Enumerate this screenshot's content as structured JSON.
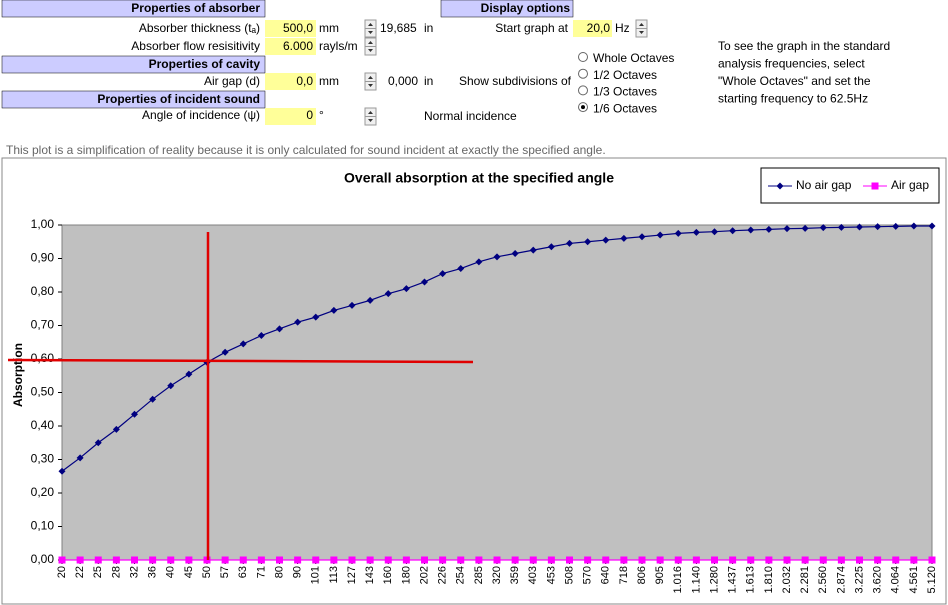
{
  "sections": {
    "absorber": "Properties of absorber",
    "display": "Display options",
    "cavity": "Properties of cavity",
    "incident": "Properties of incident sound"
  },
  "fields": [
    {
      "label": "Absorber thickness (tₐ)",
      "value": "500,0",
      "unit": "mm",
      "converted": "19,685",
      "converted_unit": "in"
    },
    {
      "label": "Absorber flow resisitivity",
      "value": "6.000",
      "unit": "rayls/m"
    },
    {
      "label": "Air gap (d)",
      "value": "0,0",
      "unit": "mm",
      "converted": "0,000",
      "converted_unit": "in"
    },
    {
      "label": "Angle of incidence (ψ)",
      "value": "0",
      "unit": "°",
      "note": "Normal incidence"
    }
  ],
  "display": {
    "start_label": "Start graph at",
    "start_value": "20,0",
    "start_unit": "Hz",
    "subdivisions_label": "Show subdivisions of",
    "options": [
      "Whole Octaves",
      "1/2 Octaves",
      "1/3 Octaves",
      "1/6 Octaves"
    ],
    "selected": 3
  },
  "info": [
    "To see the graph in the standard",
    "analysis frequencies, select",
    "\"Whole Octaves\" and set the",
    "starting frequency to 62.5Hz"
  ],
  "note": "This plot is a simplification of reality because it is only calculated for sound incident at exactly the specified angle.",
  "chart_data": {
    "type": "line",
    "title": "Overall absorption at the specified angle",
    "y_label": "Absorption",
    "categories": [
      "20",
      "22",
      "25",
      "28",
      "32",
      "36",
      "40",
      "45",
      "50",
      "57",
      "63",
      "71",
      "80",
      "90",
      "101",
      "113",
      "127",
      "143",
      "160",
      "180",
      "202",
      "226",
      "254",
      "285",
      "320",
      "359",
      "403",
      "453",
      "508",
      "570",
      "640",
      "718",
      "806",
      "905",
      "1.016",
      "1.140",
      "1.280",
      "1.437",
      "1.613",
      "1.810",
      "2.032",
      "2.281",
      "2.560",
      "2.874",
      "3.225",
      "3.620",
      "4.064",
      "4.561",
      "5.120"
    ],
    "series": [
      {
        "name": "No air gap",
        "color": "#000080",
        "marker": "diamond",
        "values": [
          0.265,
          0.305,
          0.35,
          0.39,
          0.435,
          0.48,
          0.52,
          0.555,
          0.59,
          0.62,
          0.645,
          0.67,
          0.69,
          0.71,
          0.725,
          0.745,
          0.76,
          0.775,
          0.795,
          0.81,
          0.83,
          0.855,
          0.87,
          0.89,
          0.905,
          0.915,
          0.925,
          0.935,
          0.945,
          0.95,
          0.955,
          0.96,
          0.965,
          0.97,
          0.975,
          0.978,
          0.98,
          0.983,
          0.985,
          0.987,
          0.989,
          0.99,
          0.992,
          0.993,
          0.994,
          0.995,
          0.996,
          0.997,
          0.997
        ]
      },
      {
        "name": "Air gap",
        "color": "#ff00ff",
        "marker": "square",
        "values": [
          0,
          0,
          0,
          0,
          0,
          0,
          0,
          0,
          0,
          0,
          0,
          0,
          0,
          0,
          0,
          0,
          0,
          0,
          0,
          0,
          0,
          0,
          0,
          0,
          0,
          0,
          0,
          0,
          0,
          0,
          0,
          0,
          0,
          0,
          0,
          0,
          0,
          0,
          0,
          0,
          0,
          0,
          0,
          0,
          0,
          0,
          0,
          0,
          0
        ]
      }
    ],
    "ylim": [
      0,
      1
    ],
    "yticks": [
      {
        "value": 0,
        "label": "0,00"
      },
      {
        "value": 0.1,
        "label": "0,10"
      },
      {
        "value": 0.2,
        "label": "0,20"
      },
      {
        "value": 0.3,
        "label": "0,30"
      },
      {
        "value": 0.4,
        "label": "0,40"
      },
      {
        "value": 0.5,
        "label": "0,50"
      },
      {
        "value": 0.6,
        "label": "0,60"
      },
      {
        "value": 0.7,
        "label": "0,70"
      },
      {
        "value": 0.8,
        "label": "0,80"
      },
      {
        "value": 0.9,
        "label": "0,90"
      },
      {
        "value": 1,
        "label": "1,00"
      }
    ],
    "plot_background": "#c0c0c0",
    "legend": "top-right"
  }
}
